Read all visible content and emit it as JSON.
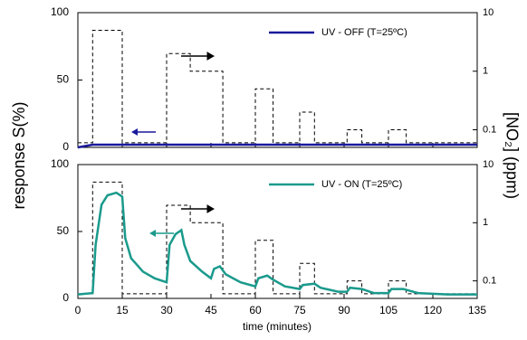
{
  "chart_data": [
    {
      "type": "line",
      "ylabel": "response S(%)",
      "y2label": "[NO₂] (ppm)",
      "xlim": [
        0,
        135
      ],
      "ylim": [
        0,
        100
      ],
      "yticks": [
        0,
        50,
        100
      ],
      "y2lim": [
        0.05,
        10
      ],
      "y2ticks": [
        0.1,
        1,
        10
      ],
      "y2log": true,
      "legend": "upper right",
      "series": [
        {
          "color": "#000000",
          "style": "dashed",
          "axis": "y2",
          "x": [
            0,
            5,
            5,
            15,
            15,
            30,
            30,
            38,
            38,
            49,
            49,
            60,
            60,
            66,
            66,
            75,
            75,
            80,
            80,
            91,
            91,
            96,
            96,
            105,
            105,
            111,
            111,
            135
          ],
          "values": [
            0.06,
            0.06,
            5,
            5,
            0.06,
            0.06,
            2,
            2,
            1,
            1,
            0.06,
            0.06,
            0.5,
            0.5,
            0.06,
            0.06,
            0.2,
            0.2,
            0.06,
            0.06,
            0.1,
            0.1,
            0.06,
            0.06,
            0.1,
            0.1,
            0.06,
            0.06
          ]
        },
        {
          "name": "UV - OFF (T=25ºC)",
          "color": "#1a1a9c",
          "style": "solid",
          "x": [
            0,
            5,
            135
          ],
          "values": [
            0,
            2,
            2
          ]
        }
      ]
    },
    {
      "type": "line",
      "xlabel": "time (minutes)",
      "xlim": [
        0,
        135
      ],
      "xticks": [
        0,
        15,
        30,
        45,
        60,
        75,
        90,
        105,
        120,
        135
      ],
      "ylim": [
        0,
        100
      ],
      "yticks": [
        0,
        50,
        100
      ],
      "y2lim": [
        0.05,
        10
      ],
      "y2ticks": [
        0.1,
        1,
        10
      ],
      "y2log": true,
      "legend": "upper right",
      "series": [
        {
          "color": "#000000",
          "style": "dashed",
          "axis": "y2",
          "x": [
            0,
            5,
            5,
            15,
            15,
            30,
            30,
            38,
            38,
            49,
            49,
            60,
            60,
            66,
            66,
            75,
            75,
            80,
            80,
            91,
            91,
            96,
            96,
            105,
            105,
            111,
            111,
            135
          ],
          "values": [
            0.06,
            0.06,
            5,
            5,
            0.06,
            0.06,
            2,
            2,
            1,
            1,
            0.06,
            0.06,
            0.5,
            0.5,
            0.06,
            0.06,
            0.2,
            0.2,
            0.06,
            0.06,
            0.1,
            0.1,
            0.06,
            0.06,
            0.1,
            0.1,
            0.06,
            0.06
          ]
        },
        {
          "name": "UV - ON   (T=25ºC)",
          "color": "#1a9a8c",
          "style": "solid",
          "x": [
            0,
            5,
            6,
            8,
            10,
            13,
            15,
            16,
            18,
            22,
            26,
            30,
            31,
            33,
            35,
            36,
            38,
            42,
            45,
            46,
            48,
            50,
            55,
            60,
            61,
            64,
            66,
            70,
            75,
            76,
            80,
            82,
            88,
            91,
            92,
            96,
            100,
            105,
            106,
            110,
            115,
            125,
            135
          ],
          "values": [
            3,
            4,
            40,
            70,
            77,
            79,
            76,
            45,
            30,
            20,
            15,
            12,
            40,
            48,
            51,
            40,
            28,
            20,
            15,
            22,
            24,
            18,
            12,
            9,
            15,
            17,
            14,
            9,
            7,
            10,
            11,
            8,
            5,
            5,
            8,
            7,
            4,
            4,
            7,
            7,
            4,
            3,
            3
          ]
        }
      ]
    }
  ]
}
